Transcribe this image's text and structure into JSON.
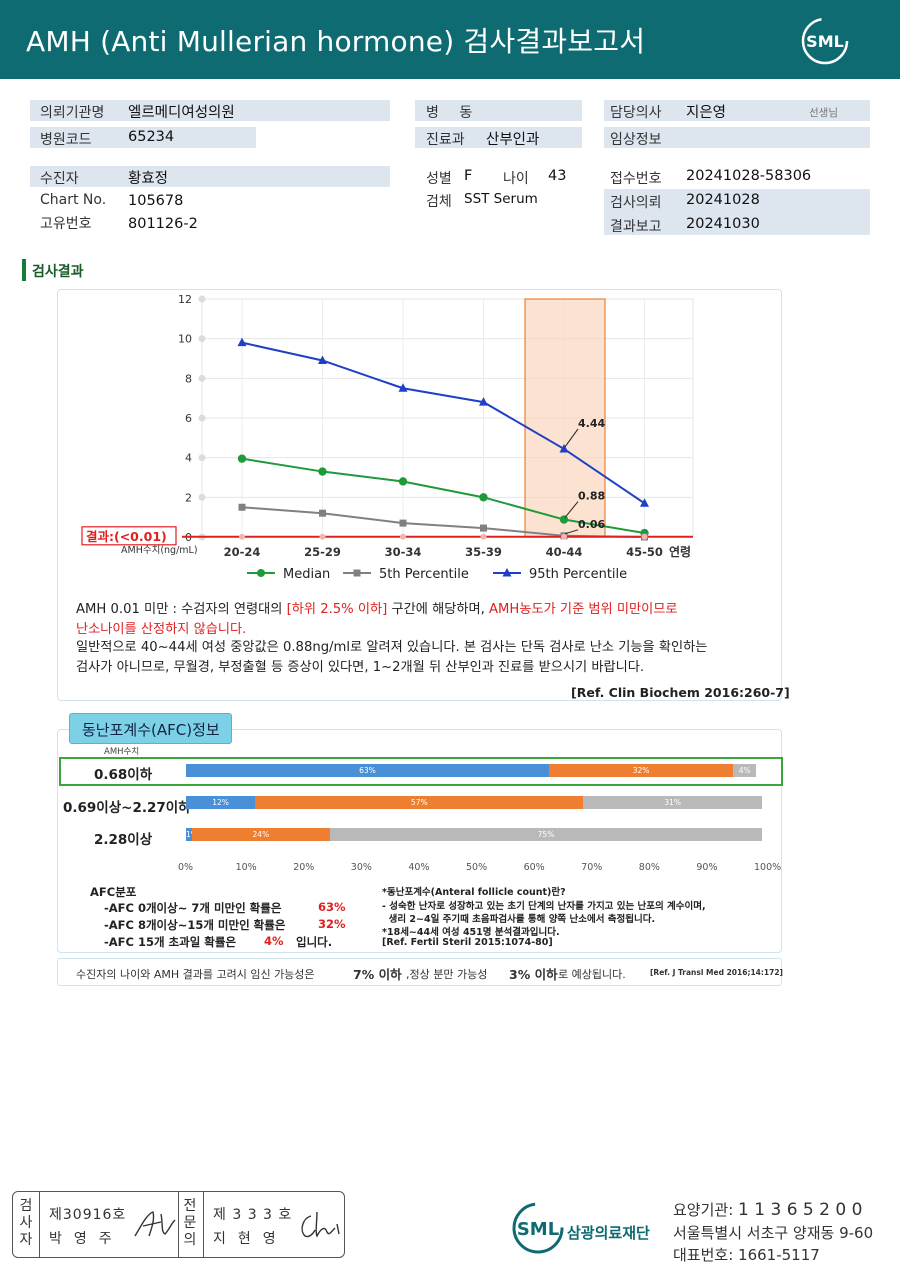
{
  "header": {
    "title": "AMH (Anti Mullerian hormone) 검사결과보고서",
    "logo_text": "SML"
  },
  "info": {
    "org_label": "의뢰기관명",
    "org_value": "엘르메디여성의원",
    "code_label": "병원코드",
    "code_value": "65234",
    "ward_label": "병 동",
    "ward_value": "",
    "dept_label": "진료과",
    "dept_value": "산부인과",
    "doctor_label": "담당의사",
    "doctor_value": "지은영",
    "doctor_suffix": "선생님",
    "clinical_label": "임상정보",
    "clinical_value": "",
    "patient_label": "수진자",
    "patient_value": "황효정",
    "chart_label": "Chart No.",
    "chart_value": "105678",
    "id_label": "고유번호",
    "id_value": "801126-2",
    "sex_label": "성별",
    "sex_value": "F",
    "age_label": "나이",
    "age_value": "43",
    "specimen_label": "검체",
    "specimen_value": "SST Serum",
    "receipt_label": "접수번호",
    "receipt_value": "20241028-58306",
    "request_label": "검사의뢰",
    "request_value": "20241028",
    "report_label": "결과보고",
    "report_value": "20241030"
  },
  "section_title": "검사결과",
  "chart_data": {
    "type": "line",
    "categories": [
      "20-24",
      "25-29",
      "30-34",
      "35-39",
      "40-44",
      "45-50"
    ],
    "series": [
      {
        "name": "Median",
        "values": [
          3.95,
          3.3,
          2.8,
          2.0,
          0.88,
          0.2
        ],
        "color": "#1e9a3a"
      },
      {
        "name": "5th Percentile",
        "values": [
          1.5,
          1.2,
          0.7,
          0.45,
          0.06,
          0.0
        ],
        "color": "#808080"
      },
      {
        "name": "95th Percentile",
        "values": [
          9.8,
          8.9,
          7.5,
          6.8,
          4.44,
          1.7
        ],
        "color": "#1f3fc7"
      }
    ],
    "data_labels": [
      "4.44",
      "0.88",
      "0.06"
    ],
    "yticks": [
      "12",
      "10",
      "8",
      "6",
      "4",
      "2",
      "0"
    ],
    "ylim": [
      0,
      12
    ],
    "xlabel": "연령",
    "ylabel": "AMH수치(ng/mL)",
    "highlight_category": "40-44",
    "result_label": "결과:(<0.01)",
    "result_value": 0.01,
    "result_color": "#e02020",
    "legend": "bottom"
  },
  "notes": {
    "line1_a": "AMH   0.01 미만 : 수검자의 연령대의 ",
    "line1_b": "[하위 2.5% 이하]",
    "line1_c": " 구간에 해당하며, ",
    "line1_d": "AMH농도가 기준 범위 미만이므로",
    "line2": "난소나이를 산정하지 않습니다.",
    "line3": "일반적으로 40~44세 여성 중앙값은 0.88ng/ml로 알려져 있습니다. 본 검사는 단독 검사로 난소 기능을 확인하는",
    "line4": "검사가 아니므로, 무월경, 부정출혈 등 증상이 있다면, 1~2개월 뒤 산부인과 진료를 받으시기 바랍니다.",
    "ref": "[Ref. Clin Biochem 2016:260-7]"
  },
  "afc": {
    "title": "동난포계수(AFC)정보",
    "col_label": "AMH수치",
    "rows": [
      {
        "label": "0.68이하",
        "segments": [
          63,
          32,
          4
        ],
        "texts": [
          "63%",
          "32%",
          "4%"
        ]
      },
      {
        "label": "0.69이상~2.27이하",
        "segments": [
          12,
          57,
          31
        ],
        "texts": [
          "12%",
          "57%",
          "31%"
        ]
      },
      {
        "label": "2.28이상",
        "segments": [
          1,
          24,
          75
        ],
        "texts": [
          "1%",
          "24%",
          "75%"
        ]
      }
    ],
    "xticks": [
      "0%",
      "10%",
      "20%",
      "30%",
      "40%",
      "50%",
      "60%",
      "70%",
      "80%",
      "90%",
      "100%"
    ],
    "dist_title": "AFC분포",
    "dist1_a": "-AFC  0개이상~ 7개 미만인 확률은",
    "dist1_b": "63%",
    "dist2_a": "-AFC  8개이상~15개 미만인 확률은",
    "dist2_b": "32%",
    "dist3_a": "-AFC  15개 초과일 확률은",
    "dist3_b": "4%",
    "dist3_c": "입니다.",
    "def1": "*동난포계수(Anteral follicle count)란?",
    "def2": "- 성숙한 난자로 성장하고 있는 초기 단계의 난자를 가지고 있는 난포의 계수이며,",
    "def3": "  생리 2~4일 주기때 초음파검사를 통해 양쪽 난소에서 측정됩니다.",
    "def4": "*18세~44세 여성 451명 분석결과입니다.",
    "def5": "[Ref. Fertil Steril 2015:1074-80]"
  },
  "pregnancy": {
    "a": "수진자의  나이와 AMH 결과를 고려시 임신 가능성은",
    "b": "7% 이하",
    "c": ",정상 분만 가능성",
    "d": "3% 이하",
    "e": "로 예상됩니다.",
    "ref": "[Ref. J Transl Med 2016;14:172]"
  },
  "signature": {
    "label1": "검사자",
    "no1": "제30916호",
    "name1": "박영주",
    "label2": "전문의",
    "no2": "제 3 3 3 호",
    "name2": "지현영"
  },
  "footer": {
    "org": "삼광의료재단",
    "logo_text": "SML",
    "code_label": "요양기관: ",
    "code_value": "1 1 3 6 5 2 0 0",
    "address": "서울특별시 서초구 양재동 9-60",
    "phone_label": "대표번호: ",
    "phone_value": "1661-5117"
  },
  "colors": {
    "header_bg": "#0e6b72",
    "median": "#1e9a3a",
    "p5": "#808080",
    "p95": "#1f3fc7",
    "alert": "#e02020",
    "bar_blue": "#4a90d9",
    "bar_orange": "#ef7f30",
    "bar_gray": "#b9b9b9"
  }
}
